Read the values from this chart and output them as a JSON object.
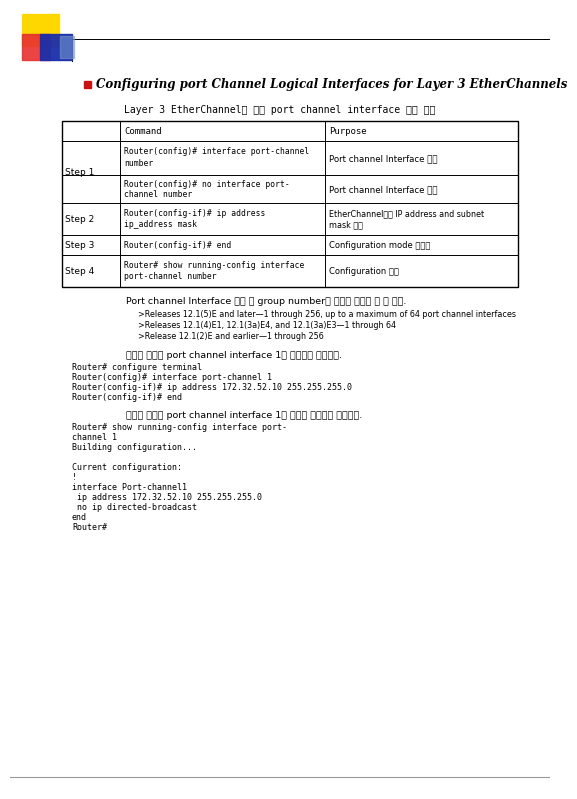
{
  "title": "Configuring port Channel Logical Interfaces for Layer 3 EtherChannels",
  "table_title": "Layer 3 EtherChannel을 위한 port channel interface 생성 단계",
  "note1": "Port channel Interface 생성 시 group number는 다음의 하나로 할 수 있다.",
  "bullets": [
    ">Releases 12.1(5)E and later—1 through 256, up to a maximum of 64 port channel interfaces",
    ">Releases 12.1(4)E1, 12.1(3a)E4, and 12.1(3a)E3—1 through 64",
    ">Release 12.1(2)E and earlier—1 through 256"
  ],
  "note2": "다음의 예제는 port channel interface 1을 생성하는 방법이다.",
  "code1_lines": [
    "Router# configure terminal",
    "Router(config)# interface port-channel 1",
    "Router(config-if)# ip address 172.32.52.10 255.255.255.0",
    "Router(config-if)# end"
  ],
  "note3": "다음의 예제는 port channel interface 1의 설정을 확인하는 방법이다.",
  "code2_lines": [
    "Router# show running-config interface port-",
    "channel 1",
    "Building configuration...",
    "",
    "Current configuration:",
    "!",
    "interface Port-channel1",
    " ip address 172.32.52.10 255.255.255.0",
    " no ip directed-broadcast",
    "end",
    "Router#"
  ],
  "bg_color": "#ffffff"
}
